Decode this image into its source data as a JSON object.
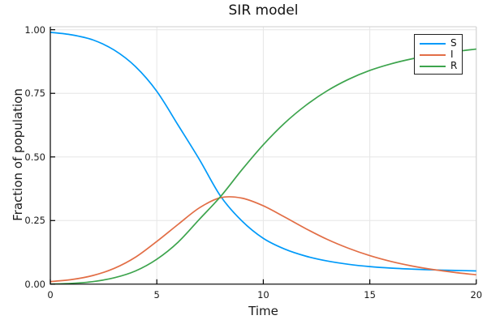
{
  "chart_data": {
    "type": "line",
    "title": "SIR model",
    "xlabel": "Time",
    "ylabel": "Fraction of population",
    "xlim": [
      0,
      20
    ],
    "ylim": [
      0,
      1
    ],
    "grid": true,
    "legend_position": "top-right",
    "xticks": [
      0,
      5,
      10,
      15,
      20
    ],
    "ytick_labels": [
      "0.00",
      "0.25",
      "0.50",
      "0.75",
      "1.00"
    ],
    "ytick_values": [
      0,
      0.25,
      0.5,
      0.75,
      1.0
    ],
    "x": [
      0,
      1,
      2,
      3,
      4,
      5,
      6,
      7,
      8,
      9,
      10,
      11,
      12,
      13,
      14,
      15,
      16,
      17,
      18,
      19,
      20
    ],
    "series": [
      {
        "name": "S",
        "color": "#009AF9",
        "values": [
          0.99,
          0.98,
          0.96,
          0.92,
          0.855,
          0.758,
          0.625,
          0.49,
          0.345,
          0.248,
          0.18,
          0.138,
          0.11,
          0.091,
          0.078,
          0.069,
          0.063,
          0.059,
          0.056,
          0.054,
          0.052
        ]
      },
      {
        "name": "I",
        "color": "#E26E46",
        "values": [
          0.01,
          0.018,
          0.034,
          0.062,
          0.106,
          0.168,
          0.235,
          0.3,
          0.34,
          0.338,
          0.308,
          0.264,
          0.218,
          0.176,
          0.141,
          0.112,
          0.089,
          0.071,
          0.057,
          0.046,
          0.037
        ]
      },
      {
        "name": "R",
        "color": "#3DA44D",
        "values": [
          0.0,
          0.003,
          0.01,
          0.025,
          0.052,
          0.098,
          0.165,
          0.255,
          0.345,
          0.45,
          0.548,
          0.633,
          0.703,
          0.76,
          0.805,
          0.84,
          0.866,
          0.886,
          0.902,
          0.914,
          0.924
        ]
      }
    ],
    "colors": {
      "grid": "#E6E6E6",
      "frame": "#CFCFCF",
      "axis": "#000000",
      "background": "#FFFFFF"
    }
  }
}
